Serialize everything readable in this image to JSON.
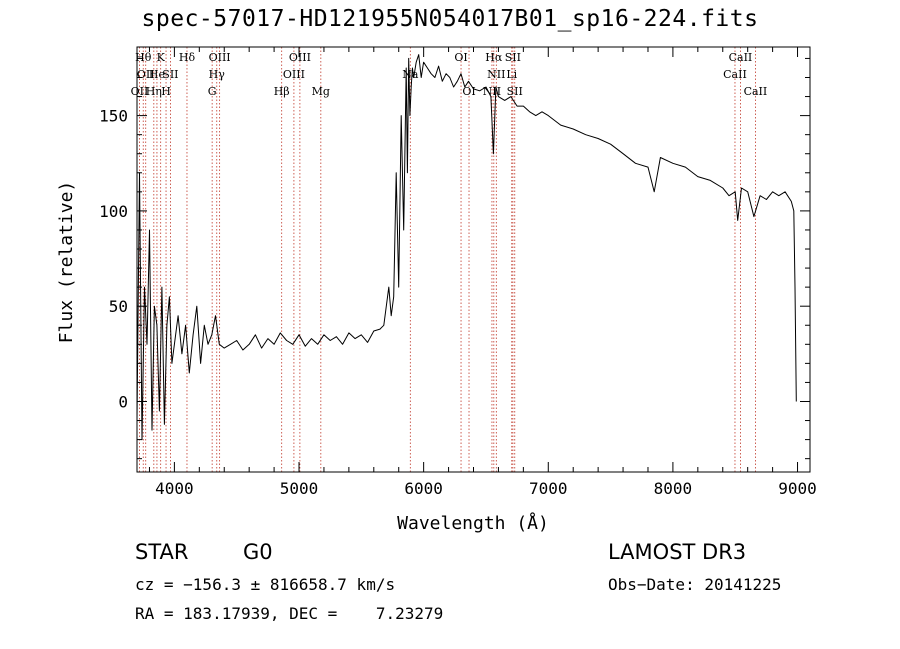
{
  "chart_data": {
    "type": "line",
    "title": "spec-57017-HD121955N054017B01_sp16-224.fits",
    "xlabel": "Wavelength (Å)",
    "ylabel": "Flux (relative)",
    "xlim": [
      3700,
      9100
    ],
    "ylim": [
      -37,
      186
    ],
    "x_ticks": [
      4000,
      5000,
      6000,
      7000,
      8000,
      9000
    ],
    "x_tick_labels": [
      "4000",
      "5000",
      "6000",
      "7000",
      "8000",
      "9000"
    ],
    "y_ticks": [
      0,
      50,
      100,
      150
    ],
    "y_tick_labels": [
      "0",
      "50",
      "100",
      "150"
    ],
    "x_minor_step": 200,
    "y_minor_step": 10,
    "series": [
      {
        "name": "flux",
        "x": [
          3700,
          3720,
          3740,
          3760,
          3780,
          3800,
          3820,
          3840,
          3860,
          3880,
          3900,
          3920,
          3940,
          3960,
          3980,
          4000,
          4030,
          4060,
          4090,
          4120,
          4150,
          4180,
          4210,
          4240,
          4270,
          4300,
          4330,
          4360,
          4400,
          4450,
          4500,
          4550,
          4600,
          4650,
          4700,
          4750,
          4800,
          4850,
          4900,
          4950,
          5000,
          5050,
          5100,
          5150,
          5200,
          5250,
          5300,
          5350,
          5400,
          5450,
          5500,
          5550,
          5600,
          5650,
          5680,
          5700,
          5720,
          5740,
          5760,
          5780,
          5800,
          5820,
          5840,
          5860,
          5870,
          5880,
          5890,
          5900,
          5910,
          5920,
          5940,
          5960,
          5980,
          6000,
          6030,
          6060,
          6090,
          6120,
          6150,
          6180,
          6210,
          6240,
          6270,
          6300,
          6330,
          6360,
          6400,
          6450,
          6500,
          6540,
          6560,
          6580,
          6600,
          6650,
          6700,
          6750,
          6800,
          6850,
          6900,
          6950,
          7000,
          7100,
          7200,
          7300,
          7400,
          7500,
          7600,
          7700,
          7800,
          7850,
          7900,
          8000,
          8100,
          8200,
          8300,
          8400,
          8450,
          8500,
          8520,
          8550,
          8600,
          8650,
          8700,
          8750,
          8800,
          8850,
          8900,
          8950,
          8970,
          8980,
          8990
        ],
        "y": [
          -10,
          120,
          -20,
          60,
          30,
          90,
          -15,
          50,
          40,
          -5,
          60,
          -12,
          40,
          55,
          20,
          30,
          45,
          25,
          40,
          15,
          35,
          50,
          20,
          40,
          30,
          35,
          45,
          30,
          28,
          30,
          32,
          27,
          30,
          35,
          28,
          33,
          30,
          36,
          32,
          30,
          35,
          29,
          33,
          30,
          35,
          32,
          34,
          30,
          36,
          33,
          35,
          31,
          37,
          38,
          40,
          50,
          60,
          45,
          55,
          120,
          60,
          150,
          90,
          175,
          120,
          180,
          150,
          165,
          175,
          170,
          178,
          182,
          170,
          178,
          175,
          172,
          170,
          176,
          168,
          172,
          170,
          165,
          168,
          172,
          165,
          168,
          164,
          163,
          165,
          160,
          130,
          165,
          160,
          158,
          160,
          155,
          155,
          152,
          150,
          152,
          150,
          145,
          143,
          140,
          138,
          135,
          130,
          125,
          123,
          110,
          128,
          125,
          123,
          118,
          116,
          112,
          108,
          110,
          95,
          112,
          110,
          97,
          108,
          106,
          110,
          108,
          110,
          105,
          100,
          60,
          0
        ]
      }
    ],
    "lines": [
      {
        "x": 3720,
        "label": "OII",
        "row": 3
      },
      {
        "x": 3750,
        "label": "Hθ",
        "row": 1
      },
      {
        "x": 3770,
        "label": "OII",
        "row": 2
      },
      {
        "x": 3835,
        "label": "Hη",
        "row": 3
      },
      {
        "x": 3860,
        "label": "He",
        "row": 2
      },
      {
        "x": 3890,
        "label": "K",
        "row": 1
      },
      {
        "x": 3933,
        "label": "H",
        "row": 3
      },
      {
        "x": 3968,
        "label": "SII",
        "row": 2
      },
      {
        "x": 4101,
        "label": "Hδ",
        "row": 1
      },
      {
        "x": 4303,
        "label": "G",
        "row": 3
      },
      {
        "x": 4340,
        "label": "Hγ",
        "row": 2
      },
      {
        "x": 4363,
        "label": "OIII",
        "row": 1
      },
      {
        "x": 4861,
        "label": "Hβ",
        "row": 3
      },
      {
        "x": 4959,
        "label": "OIII",
        "row": 2
      },
      {
        "x": 5007,
        "label": "OIII",
        "row": 1
      },
      {
        "x": 5175,
        "label": "Mg",
        "row": 3
      },
      {
        "x": 5893,
        "label": "Na",
        "row": 2
      },
      {
        "x": 6300,
        "label": "OI",
        "row": 1
      },
      {
        "x": 6364,
        "label": "OI",
        "row": 3
      },
      {
        "x": 6548,
        "label": "NII",
        "row": 3
      },
      {
        "x": 6563,
        "label": "Hα",
        "row": 1
      },
      {
        "x": 6583,
        "label": "NII",
        "row": 2
      },
      {
        "x": 6707,
        "label": "Li",
        "row": 2
      },
      {
        "x": 6716,
        "label": "SII",
        "row": 1
      },
      {
        "x": 6731,
        "label": "SII",
        "row": 3
      },
      {
        "x": 8498,
        "label": "CaII",
        "row": 2
      },
      {
        "x": 8542,
        "label": "CaII",
        "row": 1
      },
      {
        "x": 8662,
        "label": "CaII",
        "row": 3
      }
    ]
  },
  "info": {
    "object_type": "STAR",
    "subclass": "G0",
    "survey": "LAMOST DR3",
    "redshift_line": "cz = −156.3 ± 816658.7 km/s",
    "obs_date": "Obs−Date: 20141225",
    "coords": "RA = 183.17939, DEC =    7.23279"
  },
  "colors": {
    "axes": "#000000",
    "spectrum": "#000000",
    "line_markers": "#c0392b",
    "background": "#ffffff"
  }
}
